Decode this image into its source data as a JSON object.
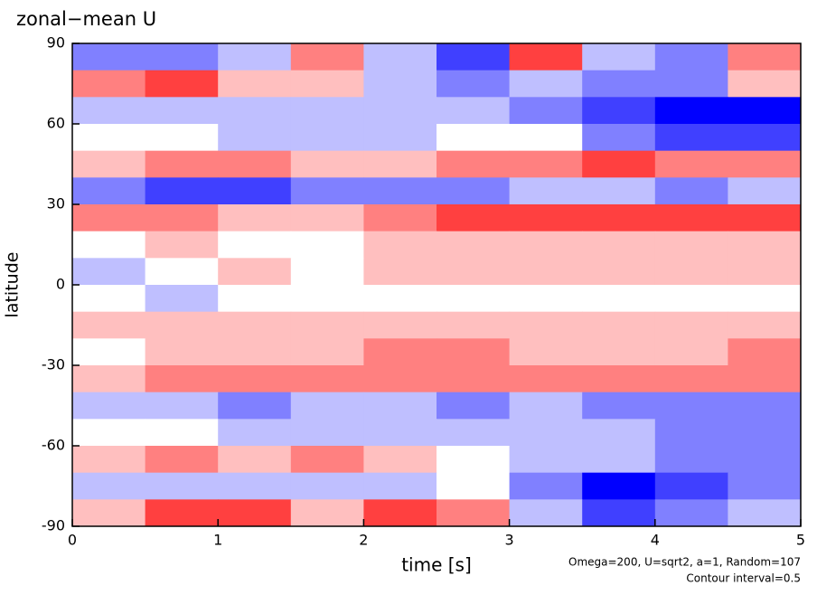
{
  "chart_data": {
    "type": "heatmap",
    "title": "zonal−mean U",
    "xlabel": "time [s]",
    "ylabel": "latitude",
    "annotations": [
      "Omega=200, U=sqrt2, a=1, Random=107",
      "Contour interval=0.5"
    ],
    "xlim": [
      0,
      5
    ],
    "xticks": [
      0,
      1,
      2,
      3,
      4,
      5
    ],
    "ylim": [
      -90,
      90
    ],
    "yticks": [
      -90,
      -60,
      -30,
      0,
      30,
      60,
      90
    ],
    "negative_color": "#0000ff",
    "positive_color": "#ff0000",
    "x": [
      0.25,
      0.75,
      1.25,
      1.75,
      2.25,
      2.75,
      3.25,
      3.75,
      4.25,
      4.75
    ],
    "y": [
      85,
      75,
      65,
      55,
      45,
      35,
      25,
      15,
      5,
      -5,
      -15,
      -25,
      -35,
      -45,
      -55,
      -65,
      -75,
      -85
    ],
    "z": [
      [
        -2,
        -2,
        -1,
        2,
        -1,
        -3,
        3,
        -1,
        -2,
        2
      ],
      [
        2,
        3,
        1,
        1,
        -1,
        -2,
        -1,
        -2,
        -2,
        1
      ],
      [
        -1,
        -1,
        -1,
        -1,
        -1,
        -1,
        -2,
        -3,
        -4,
        -4
      ],
      [
        0,
        0,
        -1,
        -1,
        -1,
        0,
        0,
        -2,
        -3,
        -3
      ],
      [
        1,
        2,
        2,
        1,
        1,
        2,
        2,
        3,
        2,
        2
      ],
      [
        -2,
        -3,
        -3,
        -2,
        -2,
        -2,
        -1,
        -1,
        -2,
        -1
      ],
      [
        2,
        2,
        1,
        1,
        2,
        3,
        3,
        3,
        3,
        3
      ],
      [
        0,
        1,
        0,
        0,
        1,
        1,
        1,
        1,
        1,
        1
      ],
      [
        -1,
        0,
        1,
        0,
        1,
        1,
        1,
        1,
        1,
        1
      ],
      [
        0,
        -1,
        0,
        0,
        0,
        0,
        0,
        0,
        0,
        0
      ],
      [
        1,
        1,
        1,
        1,
        1,
        1,
        1,
        1,
        1,
        1
      ],
      [
        0,
        1,
        1,
        1,
        2,
        2,
        1,
        1,
        1,
        2
      ],
      [
        1,
        2,
        2,
        2,
        2,
        2,
        2,
        2,
        2,
        2
      ],
      [
        -1,
        -1,
        -2,
        -1,
        -1,
        -2,
        -1,
        -2,
        -2,
        -2
      ],
      [
        0,
        0,
        -1,
        -1,
        -1,
        -1,
        -1,
        -1,
        -2,
        -2
      ],
      [
        1,
        2,
        1,
        2,
        1,
        0,
        -1,
        -1,
        -2,
        -2
      ],
      [
        -1,
        -1,
        -1,
        -1,
        -1,
        0,
        -2,
        -4,
        -3,
        -2
      ],
      [
        1,
        3,
        3,
        1,
        3,
        2,
        -1,
        -3,
        -2,
        -1
      ]
    ]
  }
}
